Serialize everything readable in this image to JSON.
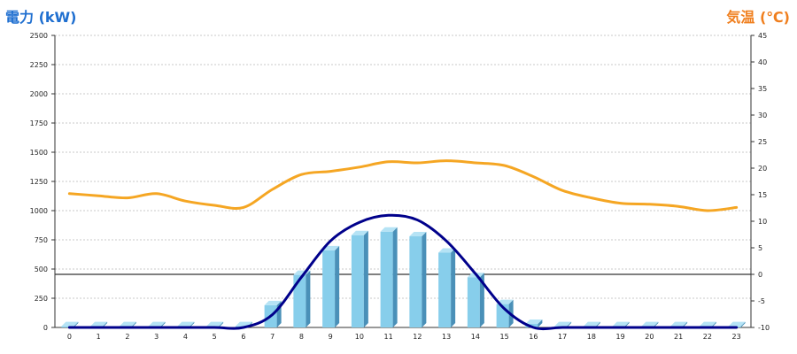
{
  "chart_data": {
    "type": "bar",
    "left_axis_title": "電力 (kW)",
    "right_axis_title": "気温 (℃)",
    "categories": [
      "0",
      "1",
      "2",
      "3",
      "4",
      "5",
      "6",
      "7",
      "8",
      "9",
      "10",
      "11",
      "12",
      "13",
      "14",
      "15",
      "16",
      "17",
      "18",
      "19",
      "20",
      "21",
      "22",
      "23"
    ],
    "y_left": {
      "min": 0,
      "max": 2500,
      "ticks": [
        0,
        250,
        500,
        750,
        1000,
        1250,
        1500,
        1750,
        2000,
        2250,
        2500
      ]
    },
    "y_right": {
      "min": -10,
      "max": 45,
      "ticks": [
        -10,
        -5,
        0,
        5,
        10,
        15,
        20,
        25,
        30,
        35,
        40,
        45
      ]
    },
    "grid": true,
    "series": [
      {
        "kind": "bar",
        "axis": "left",
        "color": "#87ceeb",
        "values": [
          10,
          10,
          10,
          10,
          10,
          10,
          10,
          190,
          450,
          660,
          790,
          820,
          780,
          640,
          430,
          200,
          30,
          10,
          10,
          10,
          10,
          10,
          10,
          10
        ]
      },
      {
        "kind": "line",
        "axis": "left",
        "color": "#00008b",
        "values": [
          0,
          0,
          0,
          0,
          0,
          0,
          0,
          110,
          430,
          740,
          900,
          960,
          920,
          740,
          460,
          160,
          0,
          0,
          0,
          0,
          0,
          0,
          0,
          0
        ]
      },
      {
        "kind": "line",
        "axis": "right",
        "color": "#f5a623",
        "values": [
          15.2,
          14.8,
          14.4,
          15.2,
          13.8,
          13.0,
          12.6,
          16.0,
          18.8,
          19.4,
          20.2,
          21.2,
          21.0,
          21.4,
          21.0,
          20.5,
          18.4,
          15.8,
          14.4,
          13.4,
          13.2,
          12.8,
          12.0,
          12.6
        ]
      }
    ]
  }
}
